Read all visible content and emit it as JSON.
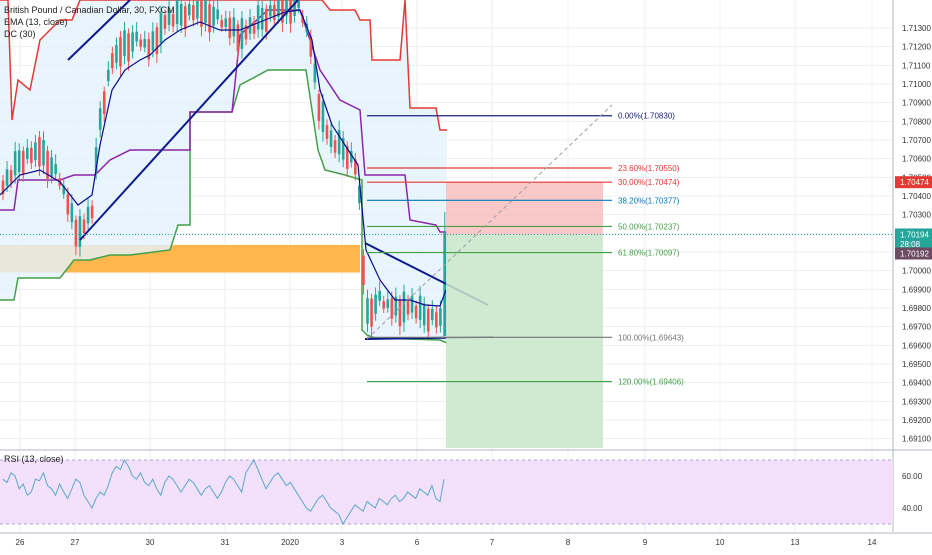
{
  "legend": {
    "symbol": "British Pound / Canadian Dollar, 30, FXCM",
    "ema": "EMA (13, close)",
    "dc": "DC (30)"
  },
  "rsi_label": "RSI (13, close)",
  "colors": {
    "candle_up": "#26a69a",
    "candle_down": "#ef5350",
    "ema": "#0b0b8c",
    "dc_upper": "#e53935",
    "dc_lower": "#43a047",
    "dc_basis": "#8e24aa",
    "dc_fill": "#e3f2fd",
    "trendline": "#0d1b8e",
    "zone": "#ffb74d",
    "stop_zone": "#f8bbbb",
    "target_zone": "#c8e6c9",
    "rsi_line": "#5aa9c9",
    "rsi_band": "#f3e0fb",
    "fib_zero": "#1a237e",
    "fib_red": "#e53935",
    "fib_blue": "#0277bd",
    "fib_green": "#43a047",
    "fib_gray": "#757575"
  },
  "chart_data": {
    "type": "candlestick",
    "ylim": [
      1.6905,
      1.7145
    ],
    "price_ticks": [
      "1.71300",
      "1.71200",
      "1.71100",
      "1.71000",
      "1.70900",
      "1.70800",
      "1.70700",
      "1.70600",
      "1.70500",
      "1.70400",
      "1.70300",
      "1.70200",
      "1.70100",
      "1.70000",
      "1.69900",
      "1.69800",
      "1.69700",
      "1.69600",
      "1.69500",
      "1.69400",
      "1.69300",
      "1.69200",
      "1.69100"
    ],
    "time_ticks": [
      "26",
      "27",
      "30",
      "31",
      "2020",
      "3",
      "6",
      "7",
      "8",
      "9",
      "10",
      "13",
      "14"
    ],
    "price_badges": [
      {
        "label": "1.70474",
        "price": 1.70474,
        "kind": "red"
      },
      {
        "label": "1.70194",
        "price": 1.70194,
        "kind": "green"
      },
      {
        "label": "28:08",
        "price": 1.70142,
        "kind": "green"
      },
      {
        "label": "1.70192",
        "price": 1.70092,
        "kind": "dark"
      }
    ],
    "current_price": 1.70194,
    "fib_levels": [
      {
        "label": "0.00%(1.70830)",
        "price": 1.7083,
        "tone": "fib_zero"
      },
      {
        "label": "23.60%(1.70550)",
        "price": 1.7055,
        "tone": "fib_red"
      },
      {
        "label": "30.00%(1.70474)",
        "price": 1.70474,
        "tone": "fib_red"
      },
      {
        "label": "38.20%(1.70377)",
        "price": 1.70377,
        "tone": "fib_blue"
      },
      {
        "label": "50.00%(1.70237)",
        "price": 1.70237,
        "tone": "fib_green"
      },
      {
        "label": "61.80%(1.70097)",
        "price": 1.70097,
        "tone": "fib_green"
      },
      {
        "label": "100.00%(1.69643)",
        "price": 1.69643,
        "tone": "fib_gray"
      },
      {
        "label": "120.00%(1.69406)",
        "price": 1.69406,
        "tone": "fib_green"
      }
    ],
    "zone": {
      "top": 1.70138,
      "bottom": 1.6999
    },
    "position": {
      "entry": 1.70194,
      "stop": 1.70474,
      "target": 1.6905
    },
    "rsi": {
      "ticks": [
        "60.00",
        "40.00"
      ],
      "levels": [
        70,
        30
      ],
      "ylim": [
        25,
        75
      ],
      "values": [
        58,
        56,
        62,
        60,
        52,
        55,
        48,
        50,
        58,
        57,
        62,
        54,
        52,
        48,
        55,
        50,
        46,
        52,
        58,
        56,
        48,
        44,
        40,
        46,
        50,
        48,
        54,
        62,
        66,
        64,
        70,
        66,
        60,
        58,
        62,
        56,
        54,
        58,
        52,
        48,
        56,
        60,
        58,
        54,
        50,
        54,
        58,
        56,
        52,
        48,
        52,
        54,
        50,
        46,
        50,
        56,
        60,
        58,
        54,
        50,
        62,
        66,
        70,
        64,
        58,
        52,
        56,
        60,
        62,
        58,
        54,
        56,
        52,
        48,
        44,
        40,
        38,
        42,
        46,
        48,
        44,
        40,
        38,
        36,
        30,
        34,
        38,
        42,
        40,
        38,
        44,
        42,
        40,
        46,
        44,
        42,
        46,
        48,
        44,
        46,
        50,
        48,
        46,
        52,
        50,
        48,
        54,
        46,
        44,
        58
      ]
    }
  }
}
